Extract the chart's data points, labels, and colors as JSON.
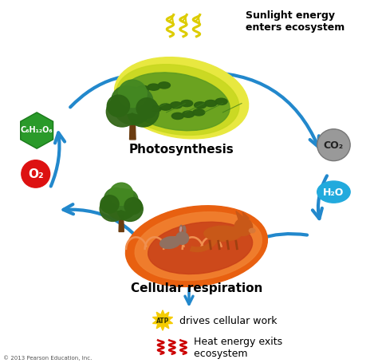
{
  "bg_color": "#ffffff",
  "photosynthesis_label": "Photosynthesis",
  "cellular_resp_label": "Cellular respiration",
  "sunlight_text": "Sunlight energy\nenters ecosystem",
  "atp_text": " drives cellular work",
  "heat_text": " Heat energy exits\n ecosystem",
  "glucose_formula": "C₆H₁₂O₆",
  "o2_formula": "O₂",
  "co2_formula": "CO₂",
  "h2o_formula": "H₂O",
  "arrow_color": "#2288cc",
  "glucose_color": "#2a9a2a",
  "o2_color": "#dd1111",
  "co2_color": "#999999",
  "h2o_color": "#22aadd",
  "atp_color": "#f5cc00",
  "heat_color": "#cc0000",
  "sunlight_color": "#ddcc00",
  "label_fontsize": 11,
  "small_fontsize": 9,
  "copy_fontsize": 5
}
